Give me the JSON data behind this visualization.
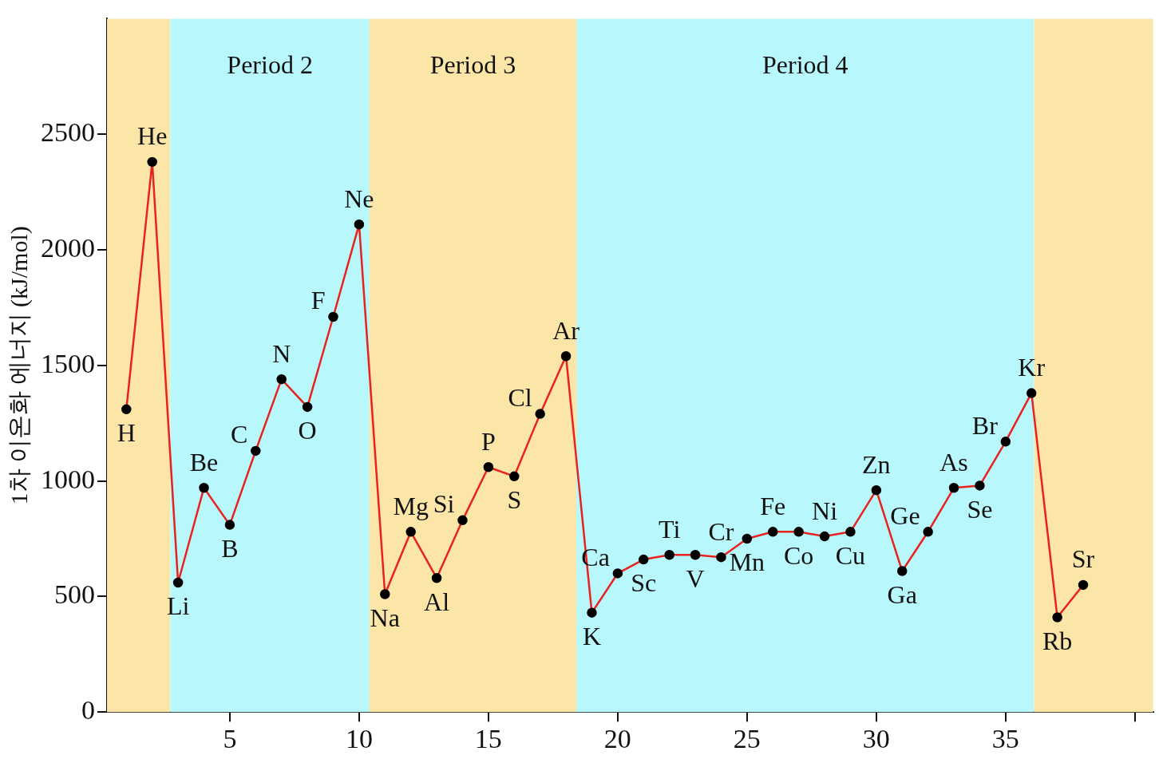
{
  "chart_data": {
    "type": "line",
    "ylabel": "1차 이온화 에너지 (kJ/mol)",
    "x": [
      1,
      2,
      3,
      4,
      5,
      6,
      7,
      8,
      9,
      10,
      11,
      12,
      13,
      14,
      15,
      16,
      17,
      18,
      19,
      20,
      21,
      22,
      23,
      24,
      25,
      26,
      27,
      28,
      29,
      30,
      31,
      32,
      33,
      34,
      35,
      36,
      37,
      38
    ],
    "series": [
      {
        "color": "#e8221e",
        "values": [
          1310,
          2380,
          560,
          970,
          810,
          1130,
          1440,
          1320,
          1710,
          2110,
          510,
          780,
          580,
          830,
          1060,
          1020,
          1290,
          1540,
          430,
          600,
          660,
          680,
          680,
          670,
          750,
          780,
          780,
          760,
          780,
          960,
          610,
          780,
          970,
          980,
          1170,
          1380,
          410,
          550
        ]
      }
    ],
    "xlim": [
      0.25,
      40.7
    ],
    "ylim": [
      0,
      3000
    ],
    "xticks": [
      5,
      10,
      15,
      20,
      25,
      30,
      35,
      {
        "value": 40,
        "label": null
      }
    ],
    "yticks": [
      0,
      500,
      1000,
      1500,
      2000,
      2500
    ],
    "bands": [
      {
        "axis": "x",
        "from": 0.25,
        "to": 2.7,
        "color": "#fbe6a8"
      },
      {
        "axis": "x",
        "from": 2.7,
        "to": 10.4,
        "label": "Period 2",
        "color": "#b8f8fc"
      },
      {
        "axis": "x",
        "from": 10.4,
        "to": 18.4,
        "label": "Period 3",
        "color": "#fbe6a8"
      },
      {
        "axis": "x",
        "from": 18.4,
        "to": 36.1,
        "label": "Period 4",
        "color": "#b8f8fc"
      },
      {
        "axis": "x",
        "from": 36.1,
        "to": 40.7,
        "color": "#fbe6a8"
      }
    ],
    "annotations": [
      {
        "text": "H",
        "x": 1,
        "y": 1310
      },
      {
        "text": "He",
        "x": 2,
        "y": 2380
      },
      {
        "text": "Li",
        "x": 3,
        "y": 560
      },
      {
        "text": "Be",
        "x": 4,
        "y": 970
      },
      {
        "text": "B",
        "x": 5,
        "y": 810
      },
      {
        "text": "C",
        "x": 6,
        "y": 1130
      },
      {
        "text": "N",
        "x": 7,
        "y": 1440
      },
      {
        "text": "O",
        "x": 8,
        "y": 1320
      },
      {
        "text": "F",
        "x": 9,
        "y": 1710
      },
      {
        "text": "Ne",
        "x": 10,
        "y": 2110
      },
      {
        "text": "Na",
        "x": 11,
        "y": 510
      },
      {
        "text": "Mg",
        "x": 12,
        "y": 780
      },
      {
        "text": "Al",
        "x": 13,
        "y": 580
      },
      {
        "text": "Si",
        "x": 14,
        "y": 830
      },
      {
        "text": "P",
        "x": 15,
        "y": 1060
      },
      {
        "text": "S",
        "x": 16,
        "y": 1020
      },
      {
        "text": "Cl",
        "x": 17,
        "y": 1290
      },
      {
        "text": "Ar",
        "x": 18,
        "y": 1540
      },
      {
        "text": "K",
        "x": 19,
        "y": 430
      },
      {
        "text": "Ca",
        "x": 20,
        "y": 600
      },
      {
        "text": "Sc",
        "x": 21,
        "y": 660
      },
      {
        "text": "Ti",
        "x": 22,
        "y": 680
      },
      {
        "text": "V",
        "x": 23,
        "y": 680
      },
      {
        "text": "Cr",
        "x": 24,
        "y": 670
      },
      {
        "text": "Mn",
        "x": 25,
        "y": 750
      },
      {
        "text": "Fe",
        "x": 26,
        "y": 780
      },
      {
        "text": "Co",
        "x": 27,
        "y": 780
      },
      {
        "text": "Ni",
        "x": 28,
        "y": 760
      },
      {
        "text": "Cu",
        "x": 29,
        "y": 780
      },
      {
        "text": "Zn",
        "x": 30,
        "y": 960
      },
      {
        "text": "Ga",
        "x": 31,
        "y": 610
      },
      {
        "text": "Ge",
        "x": 32,
        "y": 780
      },
      {
        "text": "As",
        "x": 33,
        "y": 970
      },
      {
        "text": "Se",
        "x": 34,
        "y": 980
      },
      {
        "text": "Br",
        "x": 35,
        "y": 1170
      },
      {
        "text": "Kr",
        "x": 36,
        "y": 1380
      },
      {
        "text": "Rb",
        "x": 37,
        "y": 410
      },
      {
        "text": "Sr",
        "x": 38,
        "y": 550
      }
    ],
    "marker": "circle",
    "line_style": "solid",
    "grid": false,
    "legend": false
  }
}
